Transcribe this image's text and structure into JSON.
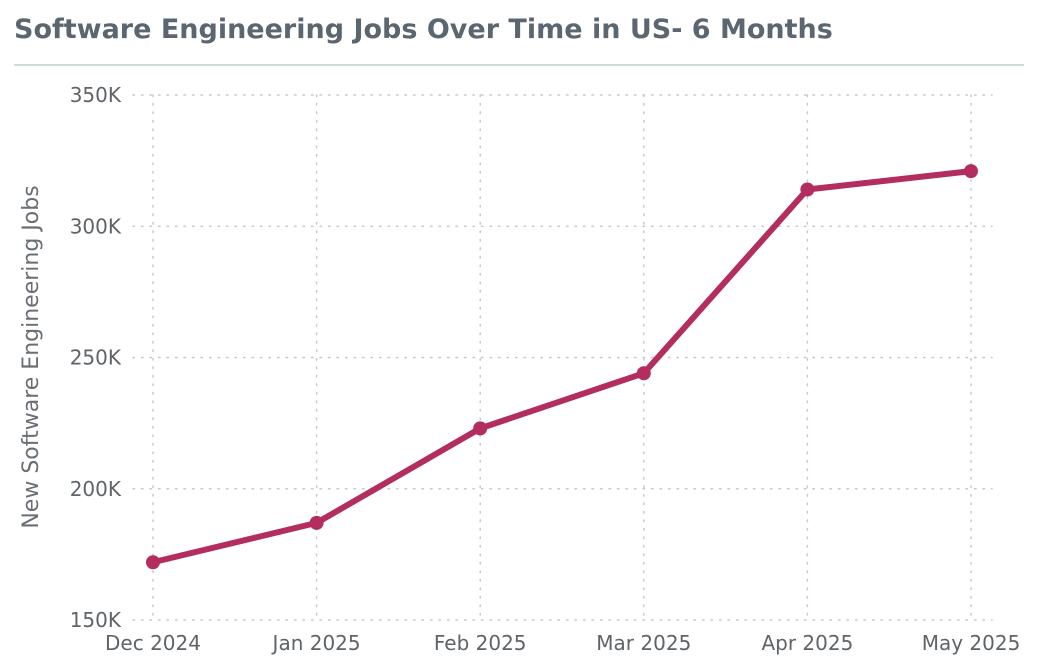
{
  "header": {
    "title": "Software Engineering Jobs Over Time in US- 6 Months"
  },
  "colors": {
    "line": "#b32d5e",
    "title": "#5b6670",
    "grid": "#c8c8c8",
    "rule": "#cfdcdc"
  },
  "chart_data": {
    "type": "line",
    "title": "Software Engineering Jobs Over Time in US- 6 Months",
    "xlabel": "",
    "ylabel": "New Software Engineering Jobs",
    "categories": [
      "Dec 2024",
      "Jan 2025",
      "Feb 2025",
      "Mar 2025",
      "Apr 2025",
      "May 2025"
    ],
    "series": [
      {
        "name": "New Software Engineering Jobs",
        "values": [
          172000,
          187000,
          223000,
          244000,
          314000,
          321000
        ]
      }
    ],
    "ylim": [
      150000,
      350000
    ],
    "yticks": [
      150000,
      200000,
      250000,
      300000,
      350000
    ],
    "ytick_labels": [
      "150K",
      "200K",
      "250K",
      "300K",
      "350K"
    ],
    "grid": true,
    "legend": "none"
  }
}
